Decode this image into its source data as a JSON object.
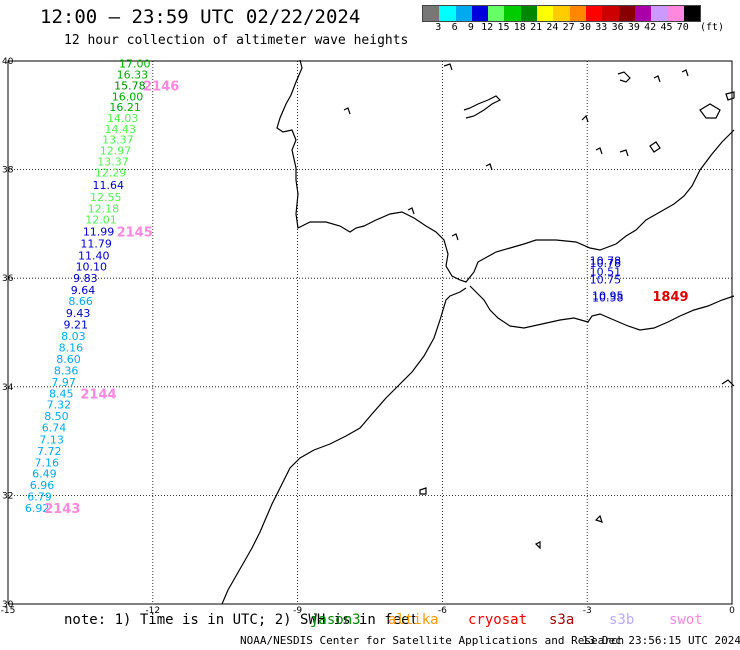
{
  "header": {
    "title": "12:00 — 23:59 UTC 02/22/2024",
    "subtitle": "12 hour collection of altimeter wave heights"
  },
  "legend": {
    "colors": [
      "#777777",
      "#00ffff",
      "#00aaee",
      "#0000dd",
      "#66ff66",
      "#00cc00",
      "#008800",
      "#ffff00",
      "#ffcc00",
      "#ff8800",
      "#ff0000",
      "#cc0000",
      "#880000",
      "#aa00aa",
      "#cc99ff",
      "#ff88dd",
      "#000000"
    ],
    "labels": [
      "3",
      "6",
      "9",
      "12",
      "15",
      "18",
      "21",
      "24",
      "27",
      "30",
      "33",
      "36",
      "39",
      "42",
      "45",
      "70"
    ],
    "unit": "(ft)"
  },
  "axes": {
    "y_ticks": [
      "40",
      "38",
      "36",
      "34",
      "32",
      "30"
    ],
    "x_ticks": [
      "-15",
      "-12",
      "-9",
      "-6",
      "-3",
      "0"
    ]
  },
  "chart_data": {
    "type": "scatter",
    "xlim": [
      -15,
      0
    ],
    "ylim": [
      30,
      40
    ],
    "grid": true,
    "series": [
      {
        "values": [
          {
            "x": -12.7,
            "y": 39.95,
            "v": "17.00",
            "c": "#00aa00"
          },
          {
            "x": -12.75,
            "y": 39.75,
            "v": "16.33",
            "c": "#00aa00"
          },
          {
            "x": -12.8,
            "y": 39.55,
            "v": "15.78",
            "c": "#008800"
          },
          {
            "x": -12.85,
            "y": 39.35,
            "v": "16.00",
            "c": "#00aa00"
          },
          {
            "x": -12.9,
            "y": 39.15,
            "v": "16.21",
            "c": "#00aa00"
          },
          {
            "x": -12.95,
            "y": 38.95,
            "v": "14.03",
            "c": "#55ee55"
          },
          {
            "x": -13.0,
            "y": 38.75,
            "v": "14.43",
            "c": "#55ee55"
          },
          {
            "x": -13.05,
            "y": 38.55,
            "v": "13.37",
            "c": "#55ee55"
          },
          {
            "x": -13.1,
            "y": 38.35,
            "v": "12.97",
            "c": "#55ee55"
          },
          {
            "x": -13.15,
            "y": 38.15,
            "v": "13.37",
            "c": "#55ee55"
          },
          {
            "x": -13.2,
            "y": 37.95,
            "v": "12.29",
            "c": "#55ee55"
          },
          {
            "x": -13.25,
            "y": 37.72,
            "v": "11.64",
            "c": "#0000cc"
          },
          {
            "x": -13.3,
            "y": 37.5,
            "v": "12.55",
            "c": "#55ee55"
          },
          {
            "x": -13.35,
            "y": 37.28,
            "v": "12.18",
            "c": "#55ee55"
          },
          {
            "x": -13.4,
            "y": 37.08,
            "v": "12.01",
            "c": "#55ee55"
          },
          {
            "x": -13.45,
            "y": 36.86,
            "v": "11.99",
            "c": "#0000cc"
          },
          {
            "x": -13.5,
            "y": 36.64,
            "v": "11.79",
            "c": "#0000cc"
          },
          {
            "x": -13.55,
            "y": 36.42,
            "v": "11.40",
            "c": "#0000cc"
          },
          {
            "x": -13.6,
            "y": 36.22,
            "v": "10.10",
            "c": "#0000cc"
          },
          {
            "x": -13.65,
            "y": 36.0,
            "v": "9.83",
            "c": "#0000cc"
          },
          {
            "x": -13.7,
            "y": 35.78,
            "v": "9.64",
            "c": "#0000cc"
          },
          {
            "x": -13.75,
            "y": 35.58,
            "v": "8.66",
            "c": "#00aaee"
          },
          {
            "x": -13.8,
            "y": 35.36,
            "v": "9.43",
            "c": "#0000cc"
          },
          {
            "x": -13.85,
            "y": 35.15,
            "v": "9.21",
            "c": "#0000cc"
          },
          {
            "x": -13.9,
            "y": 34.94,
            "v": "8.03",
            "c": "#00aaee"
          },
          {
            "x": -13.95,
            "y": 34.72,
            "v": "8.16",
            "c": "#00aaee"
          },
          {
            "x": -14.0,
            "y": 34.51,
            "v": "8.60",
            "c": "#00aaee"
          },
          {
            "x": -14.05,
            "y": 34.3,
            "v": "8.36",
            "c": "#00aaee"
          },
          {
            "x": -14.1,
            "y": 34.09,
            "v": "7.97",
            "c": "#00aaee"
          },
          {
            "x": -14.15,
            "y": 33.88,
            "v": "8.45",
            "c": "#00aaee"
          },
          {
            "x": -14.2,
            "y": 33.67,
            "v": "7.32",
            "c": "#00aaee"
          },
          {
            "x": -14.25,
            "y": 33.46,
            "v": "8.50",
            "c": "#00aaee"
          },
          {
            "x": -14.3,
            "y": 33.25,
            "v": "6.74",
            "c": "#00aaee"
          },
          {
            "x": -14.35,
            "y": 33.03,
            "v": "7.13",
            "c": "#00aaee"
          },
          {
            "x": -14.4,
            "y": 32.82,
            "v": "7.72",
            "c": "#00aaee"
          },
          {
            "x": -14.45,
            "y": 32.61,
            "v": "7.16",
            "c": "#00aaee"
          },
          {
            "x": -14.5,
            "y": 32.4,
            "v": "6.49",
            "c": "#00aaee"
          },
          {
            "x": -14.55,
            "y": 32.19,
            "v": "6.96",
            "c": "#00aaee"
          },
          {
            "x": -14.6,
            "y": 31.98,
            "v": "6.79",
            "c": "#00aaee"
          },
          {
            "x": -14.65,
            "y": 31.77,
            "v": "6.92",
            "c": "#00aaee"
          },
          {
            "x": -2.95,
            "y": 36.33,
            "v": "10.78",
            "c": "#0000cc"
          },
          {
            "x": -2.95,
            "y": 36.28,
            "v": "10.78",
            "c": "#0000cc"
          },
          {
            "x": -2.95,
            "y": 36.12,
            "v": "10.51",
            "c": "#0000cc"
          },
          {
            "x": -2.95,
            "y": 35.98,
            "v": "10.75",
            "c": "#0000cc"
          },
          {
            "x": -2.9,
            "y": 35.68,
            "v": "10.95",
            "c": "#0000cc"
          },
          {
            "x": -2.9,
            "y": 35.64,
            "v": "10.58",
            "c": "#0000cc"
          }
        ]
      }
    ],
    "annotations": [
      {
        "x": -12.2,
        "y": 39.55,
        "text": "2146",
        "c": "#ff88dd"
      },
      {
        "x": -12.75,
        "y": 36.86,
        "text": "2145",
        "c": "#ff88dd"
      },
      {
        "x": -13.5,
        "y": 33.88,
        "text": "2144",
        "c": "#ff88dd"
      },
      {
        "x": -14.25,
        "y": 31.77,
        "text": "2143",
        "c": "#ff88dd"
      },
      {
        "x": -1.65,
        "y": 35.67,
        "text": "1849",
        "c": "#dd0000"
      }
    ]
  },
  "footer": {
    "note": "note: 1) Time is in UTC; 2) SWH is in feet",
    "satellites": [
      {
        "name": "jason3",
        "color": "#008800"
      },
      {
        "name": "altika",
        "color": "#ff9900"
      },
      {
        "name": "cryosat",
        "color": "#ee0000"
      },
      {
        "name": "s3a",
        "color": "#aa0000"
      },
      {
        "name": "s3b",
        "color": "#bbaaff"
      },
      {
        "name": "swot",
        "color": "#ff88dd"
      }
    ],
    "org": "NOAA/NESDIS Center for Satellite Applications and Research",
    "timestamp": "13 Dec 23:56:15 UTC 2024"
  }
}
